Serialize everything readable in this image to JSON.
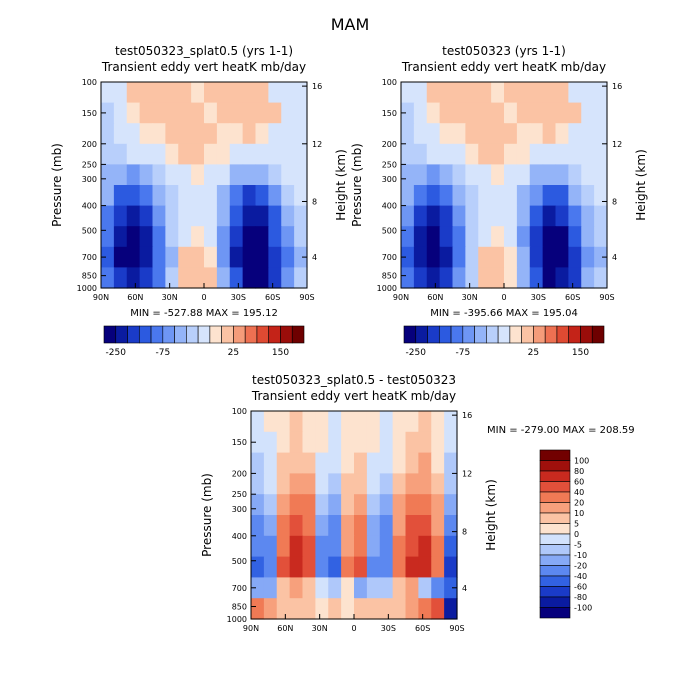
{
  "page_title": "MAM",
  "chart_data": [
    {
      "type": "heatmap",
      "title": "test050323_splat0.5 (yrs 1-1)",
      "subtitle": "Transient eddy vert heatK mb/day",
      "ylabel": "Pressure (mb)",
      "ylabel_right": "Height (km)",
      "x_ticks": [
        "90N",
        "60N",
        "30N",
        "0",
        "30S",
        "60S",
        "90S"
      ],
      "y_ticks": [
        "100",
        "150",
        "200",
        "250",
        "300",
        "400",
        "500",
        "700",
        "850",
        "1000"
      ],
      "y_right_ticks": [
        "16",
        "12",
        "8",
        "4"
      ],
      "stats": "MIN = -527.88   MAX = 195.12",
      "colorbar_labels": [
        "-250",
        "-75",
        "25",
        "150"
      ],
      "values_grid": [
        [
          -10,
          -8,
          10,
          10,
          12,
          10,
          10,
          8,
          10,
          10,
          10,
          12,
          10,
          -8,
          -10,
          -5
        ],
        [
          -12,
          -5,
          8,
          10,
          10,
          12,
          10,
          10,
          8,
          10,
          10,
          10,
          12,
          10,
          -5,
          -8
        ],
        [
          -15,
          -10,
          -5,
          5,
          8,
          10,
          12,
          10,
          10,
          8,
          8,
          10,
          5,
          -5,
          -10,
          -10
        ],
        [
          -20,
          -15,
          -10,
          -5,
          -5,
          5,
          10,
          10,
          8,
          5,
          -5,
          -10,
          -10,
          -8,
          -10,
          -5
        ],
        [
          -30,
          -50,
          -60,
          -40,
          -20,
          -10,
          -5,
          5,
          -5,
          -10,
          -30,
          -50,
          -40,
          -20,
          -10,
          -5
        ],
        [
          -50,
          -120,
          -150,
          -100,
          -40,
          -15,
          -5,
          -5,
          -10,
          -30,
          -80,
          -160,
          -140,
          -60,
          -20,
          -10
        ],
        [
          -80,
          -200,
          -250,
          -180,
          -60,
          -20,
          -10,
          -5,
          -10,
          -50,
          -150,
          -250,
          -220,
          -120,
          -40,
          -15
        ],
        [
          -100,
          -250,
          -300,
          -220,
          -80,
          -25,
          -10,
          5,
          -10,
          -60,
          -200,
          -320,
          -280,
          -150,
          -60,
          -20
        ],
        [
          -120,
          -280,
          -350,
          -250,
          -100,
          -30,
          10,
          15,
          5,
          -60,
          -220,
          -400,
          -360,
          -200,
          -80,
          -30
        ],
        [
          -100,
          -200,
          -250,
          -180,
          -80,
          -20,
          15,
          20,
          10,
          -40,
          -150,
          -300,
          -280,
          -180,
          -60,
          -20
        ]
      ]
    },
    {
      "type": "heatmap",
      "title": "test050323 (yrs 1-1)",
      "subtitle": "Transient eddy vert heatK mb/day",
      "ylabel": "Pressure (mb)",
      "ylabel_right": "Height (km)",
      "x_ticks": [
        "90N",
        "60N",
        "30N",
        "0",
        "30S",
        "60S",
        "90S"
      ],
      "y_ticks": [
        "100",
        "150",
        "200",
        "250",
        "300",
        "400",
        "500",
        "700",
        "850",
        "1000"
      ],
      "y_right_ticks": [
        "16",
        "12",
        "8",
        "4"
      ],
      "stats": "MIN = -395.66   MAX = 195.04",
      "colorbar_labels": [
        "-250",
        "-75",
        "25",
        "150"
      ],
      "values_grid": [
        [
          -10,
          -8,
          10,
          10,
          12,
          10,
          10,
          8,
          10,
          10,
          10,
          12,
          10,
          -8,
          -10,
          -5
        ],
        [
          -12,
          -5,
          8,
          10,
          10,
          12,
          10,
          10,
          8,
          10,
          10,
          10,
          12,
          10,
          -5,
          -8
        ],
        [
          -15,
          -10,
          -5,
          5,
          8,
          10,
          12,
          10,
          10,
          8,
          8,
          10,
          5,
          -5,
          -10,
          -10
        ],
        [
          -20,
          -15,
          -10,
          -5,
          -5,
          5,
          10,
          10,
          8,
          5,
          -5,
          -10,
          -10,
          -8,
          -10,
          -5
        ],
        [
          -30,
          -45,
          -55,
          -35,
          -20,
          -10,
          -5,
          5,
          -5,
          -10,
          -30,
          -45,
          -35,
          -20,
          -10,
          -5
        ],
        [
          -40,
          -100,
          -130,
          -90,
          -40,
          -15,
          -5,
          -5,
          -10,
          -30,
          -70,
          -140,
          -120,
          -50,
          -20,
          -10
        ],
        [
          -70,
          -180,
          -230,
          -160,
          -60,
          -20,
          -10,
          -5,
          -10,
          -50,
          -140,
          -230,
          -200,
          -100,
          -40,
          -15
        ],
        [
          -90,
          -220,
          -280,
          -200,
          -80,
          -20,
          -5,
          8,
          -5,
          -60,
          -180,
          -300,
          -260,
          -140,
          -50,
          -20
        ],
        [
          -110,
          -250,
          -320,
          -230,
          -90,
          -20,
          10,
          15,
          5,
          -50,
          -200,
          -360,
          -330,
          -180,
          -70,
          -30
        ],
        [
          -90,
          -180,
          -230,
          -170,
          -70,
          -15,
          12,
          15,
          8,
          -30,
          -140,
          -280,
          -250,
          -160,
          -50,
          -20
        ]
      ]
    },
    {
      "type": "heatmap",
      "title": "test050323_splat0.5 - test050323",
      "subtitle": "Transient eddy vert heatK mb/day",
      "ylabel": "Pressure (mb)",
      "ylabel_right": "Height (km)",
      "x_ticks": [
        "90N",
        "60N",
        "30N",
        "0",
        "30S",
        "60S",
        "90S"
      ],
      "y_ticks": [
        "100",
        "150",
        "200",
        "250",
        "300",
        "400",
        "500",
        "700",
        "850",
        "1000"
      ],
      "y_right_ticks": [
        "16",
        "12",
        "8",
        "4"
      ],
      "stats": "MIN = -279.00   MAX = 208.59",
      "colorbar_labels": [
        "100",
        "80",
        "60",
        "40",
        "20",
        "10",
        "5",
        "0",
        "-5",
        "-10",
        "-20",
        "-40",
        "-60",
        "-80",
        "-100"
      ],
      "values_grid": [
        [
          -5,
          0,
          3,
          5,
          3,
          0,
          -3,
          0,
          3,
          0,
          -3,
          0,
          3,
          5,
          0,
          -3
        ],
        [
          -5,
          -3,
          3,
          5,
          4,
          0,
          -3,
          2,
          4,
          0,
          -3,
          2,
          5,
          6,
          2,
          -5
        ],
        [
          -8,
          -3,
          5,
          8,
          6,
          -2,
          -5,
          3,
          6,
          -2,
          -5,
          3,
          8,
          10,
          4,
          -8
        ],
        [
          -10,
          -5,
          8,
          12,
          10,
          -5,
          -8,
          5,
          8,
          -5,
          -8,
          5,
          12,
          15,
          6,
          -10
        ],
        [
          -20,
          -10,
          15,
          30,
          20,
          -10,
          -15,
          8,
          15,
          -10,
          -15,
          10,
          25,
          30,
          10,
          -20
        ],
        [
          -30,
          -20,
          20,
          45,
          30,
          -20,
          -25,
          10,
          25,
          -15,
          -25,
          15,
          40,
          45,
          15,
          -40
        ],
        [
          -40,
          -30,
          30,
          60,
          40,
          -30,
          -40,
          15,
          35,
          -20,
          -35,
          20,
          55,
          60,
          20,
          -60
        ],
        [
          -50,
          -40,
          40,
          70,
          50,
          -40,
          -50,
          20,
          40,
          -25,
          -40,
          25,
          65,
          70,
          30,
          -80
        ],
        [
          -20,
          -15,
          5,
          10,
          5,
          -5,
          -10,
          0,
          -20,
          -10,
          -10,
          5,
          10,
          -10,
          -30,
          -60
        ],
        [
          20,
          10,
          5,
          5,
          5,
          0,
          5,
          0,
          5,
          5,
          5,
          5,
          10,
          20,
          40,
          -100
        ]
      ]
    }
  ]
}
